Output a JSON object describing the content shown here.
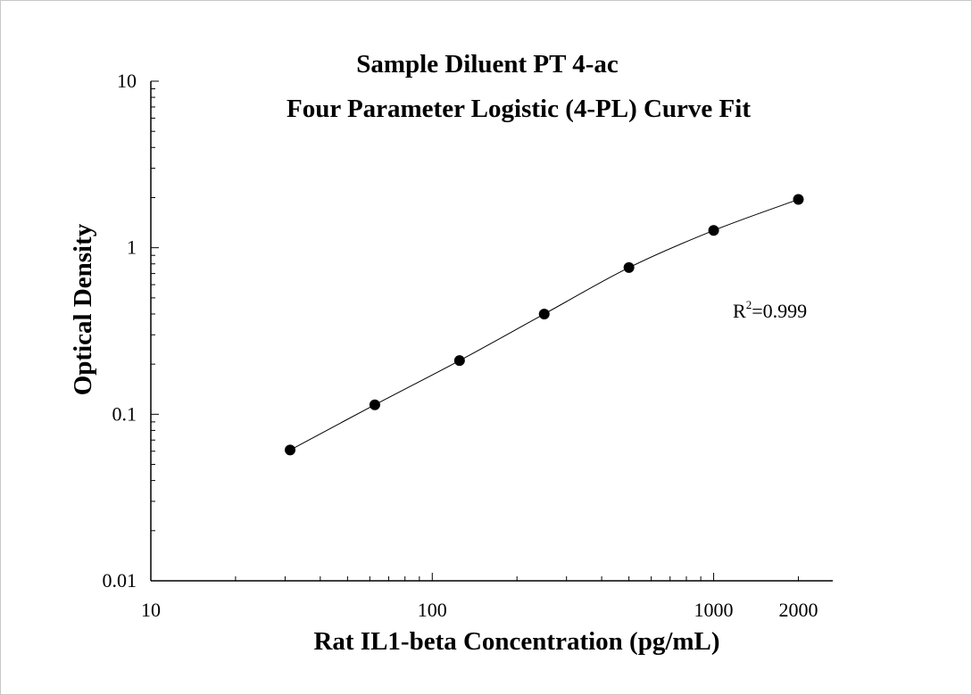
{
  "chart_data": {
    "type": "scatter",
    "title": "Sample Diluent PT 4-ac",
    "subtitle": "Four Parameter Logistic (4-PL) Curve Fit",
    "xlabel": "Rat IL1-beta Concentration (pg/mL)",
    "ylabel": "Optical Density",
    "xscale": "log",
    "yscale": "log",
    "xlim": [
      10,
      2650
    ],
    "ylim": [
      0.01,
      10
    ],
    "x_tick_labels": [
      "10",
      "100",
      "1000",
      "2000"
    ],
    "x_tick_values": [
      10,
      100,
      1000,
      2000
    ],
    "y_tick_labels": [
      "0.01",
      "0.1",
      "1",
      "10"
    ],
    "y_tick_values": [
      0.01,
      0.1,
      1,
      10
    ],
    "grid": false,
    "annotation": {
      "base": "R",
      "sup": "2",
      "rest": "=0.999"
    },
    "series": [
      {
        "x": [
          31.25,
          62.5,
          125,
          250,
          500,
          1000,
          2000
        ],
        "y": [
          0.061,
          0.114,
          0.21,
          0.4,
          0.76,
          1.27,
          1.95
        ],
        "marker": "circle",
        "fit": "4-PL",
        "color": "#000000"
      }
    ]
  }
}
